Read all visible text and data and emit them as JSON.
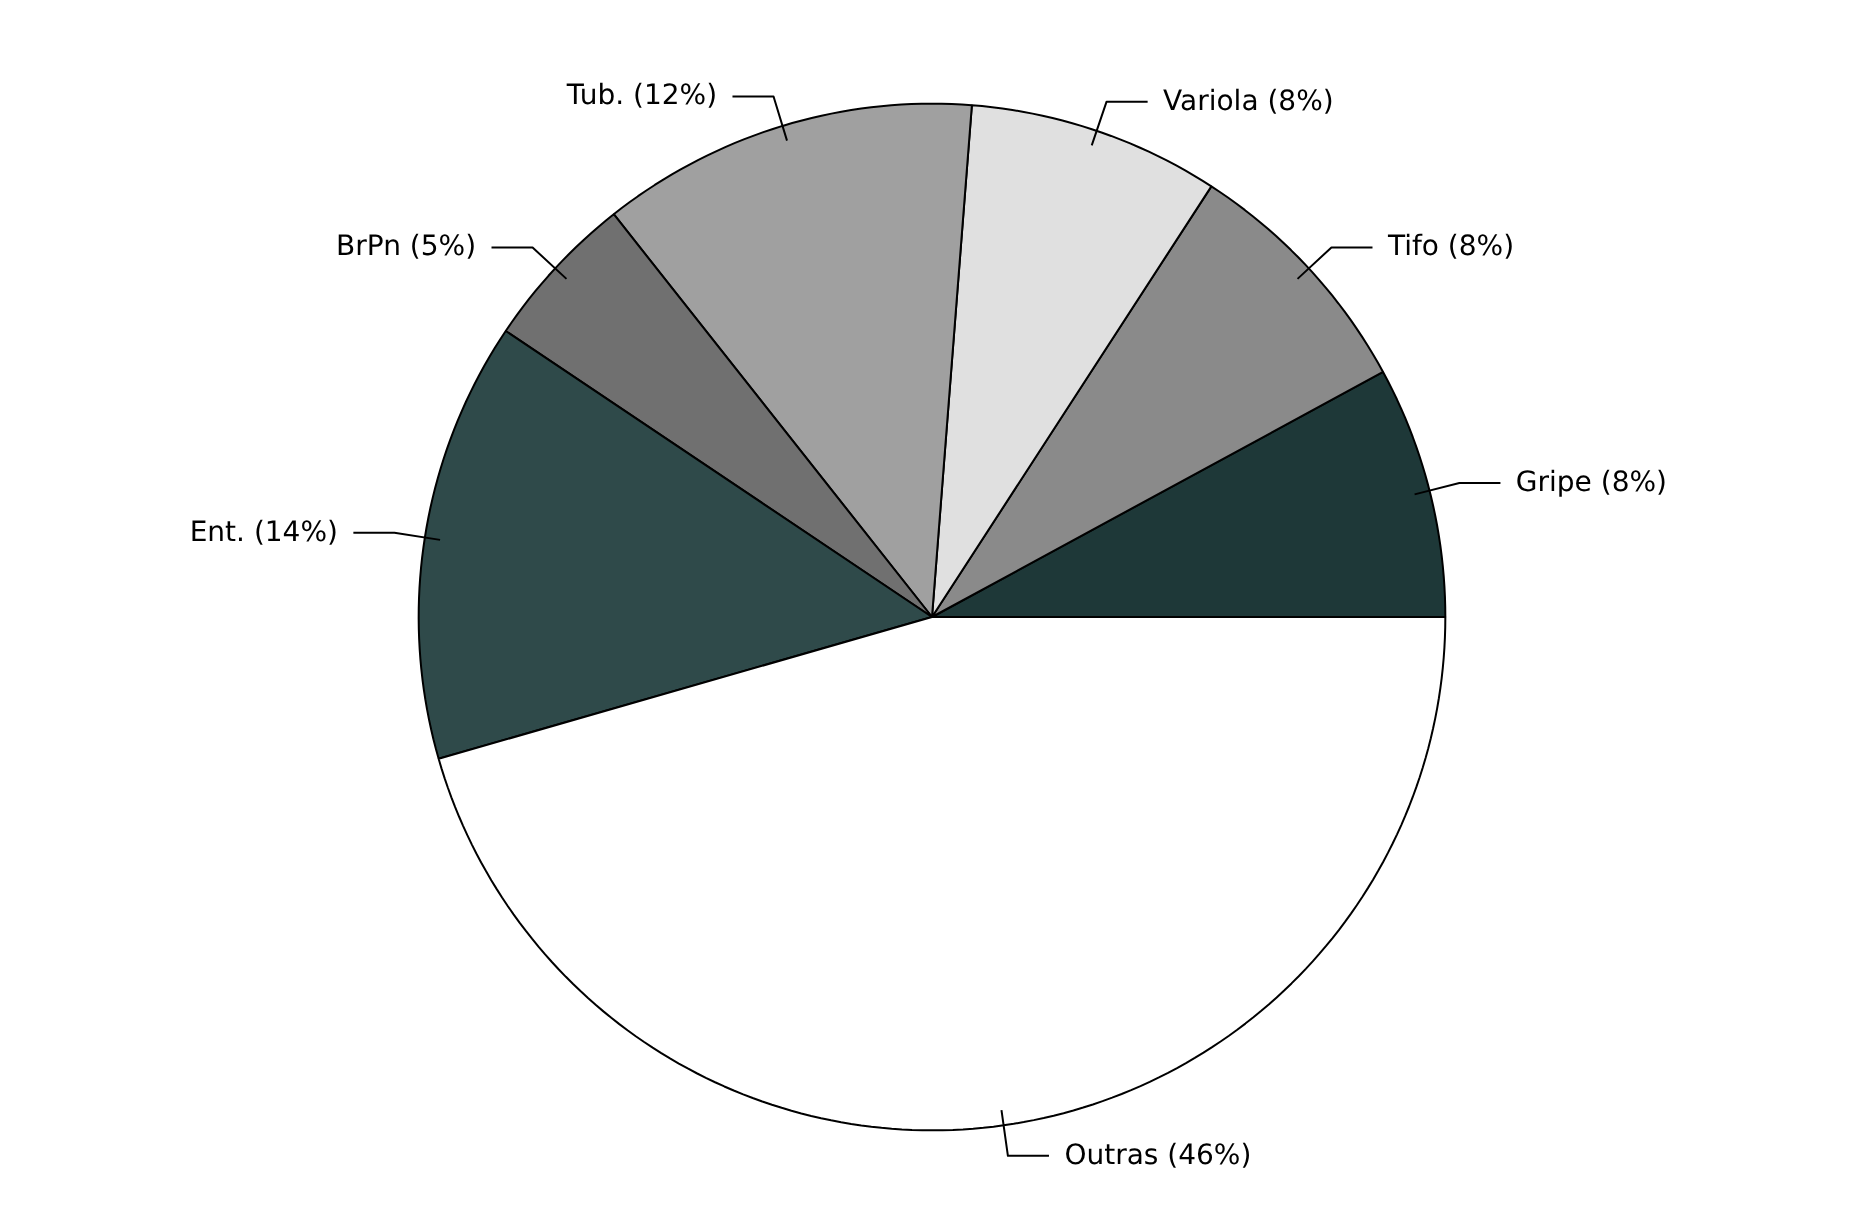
{
  "chart_data": {
    "type": "pie",
    "categories": [
      "Gripe (8%)",
      "Tifo (8%)",
      "Variola (8%)",
      "Tub. (12%)",
      "BrPn (5%)",
      "Ent. (14%)",
      "Outras (46%)"
    ],
    "values": [
      8,
      8,
      8,
      12,
      5,
      14,
      46
    ],
    "colors": [
      "#1e3838",
      "#8a8a8a",
      "#e0e0e0",
      "#a0a0a0",
      "#707070",
      "#2f4a4a",
      "#ffffff"
    ]
  }
}
